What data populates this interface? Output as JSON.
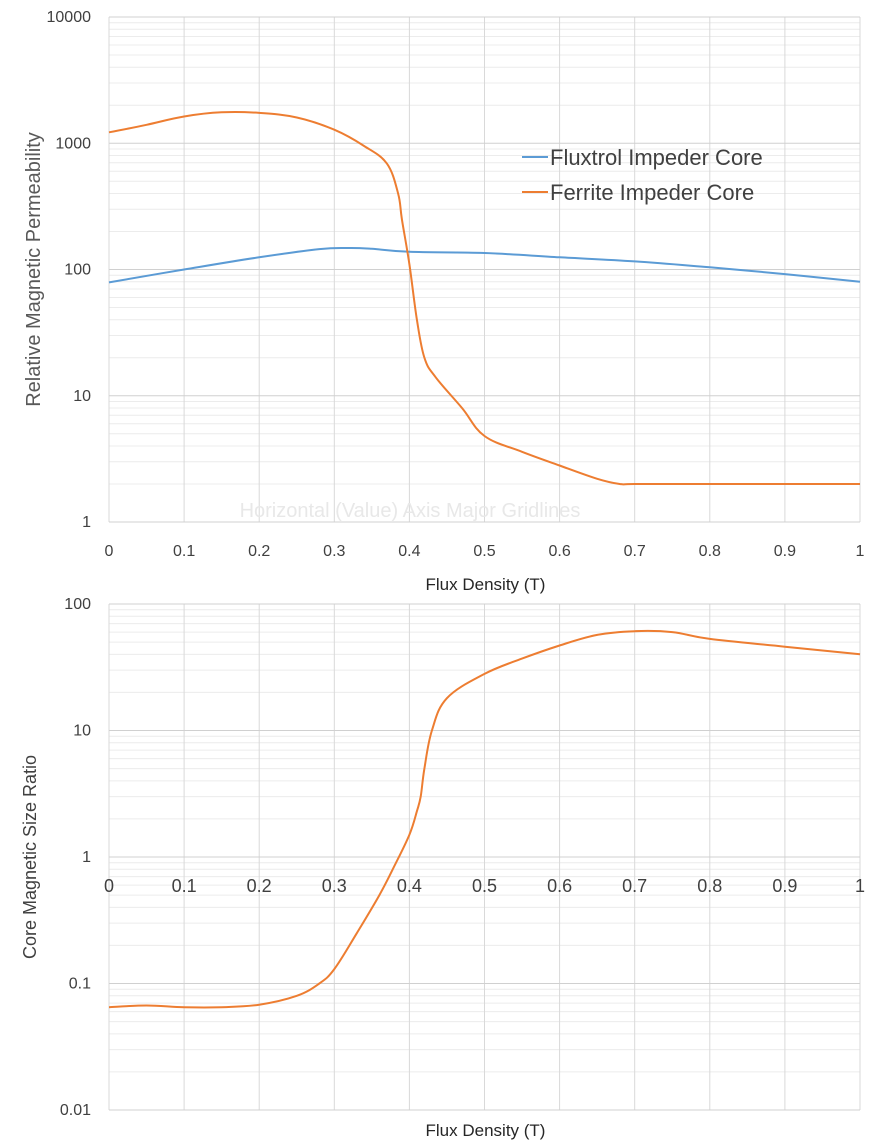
{
  "chart_data": [
    {
      "type": "line",
      "y_scale": "log",
      "xlabel": "Flux Density (T)",
      "ylabel": "Relative Magnetic Permeability",
      "xlim": [
        0,
        1
      ],
      "ylim": [
        1,
        10000
      ],
      "x_ticks": [
        "0",
        "0.1",
        "0.2",
        "0.3",
        "0.4",
        "0.5",
        "0.6",
        "0.7",
        "0.8",
        "0.9",
        "1"
      ],
      "y_ticks": [
        "1",
        "10",
        "100",
        "1000",
        "10000"
      ],
      "grid": true,
      "legend_position": "right",
      "ghost_label": "Horizontal (Value) Axis Major Gridlines",
      "series": [
        {
          "name": "Fluxtrol Impeder Core",
          "color": "#5b9bd5",
          "x": [
            0,
            0.1,
            0.2,
            0.28,
            0.32,
            0.35,
            0.4,
            0.5,
            0.6,
            0.7,
            0.8,
            0.9,
            1.0
          ],
          "y": [
            79,
            100,
            125,
            145,
            148,
            146,
            138,
            135,
            125,
            116,
            104,
            92,
            80
          ]
        },
        {
          "name": "Ferrite Impeder Core",
          "color": "#ed7d31",
          "x": [
            0,
            0.05,
            0.1,
            0.15,
            0.2,
            0.25,
            0.3,
            0.34,
            0.37,
            0.385,
            0.39,
            0.4,
            0.41,
            0.42,
            0.435,
            0.47,
            0.5,
            0.55,
            0.6,
            0.65,
            0.68,
            0.7,
            0.8,
            0.9,
            1.0
          ],
          "y": [
            1220,
            1400,
            1630,
            1760,
            1740,
            1600,
            1280,
            950,
            690,
            400,
            250,
            110,
            40,
            20,
            14,
            8,
            4.8,
            3.6,
            2.8,
            2.2,
            2.0,
            2.0,
            2.0,
            2.0,
            2.0
          ]
        }
      ]
    },
    {
      "type": "line",
      "y_scale": "log",
      "xlabel": "Flux Density (T)",
      "ylabel": "Core Magnetic Size Ratio",
      "xlim": [
        0,
        1
      ],
      "ylim": [
        0.01,
        100
      ],
      "x_ticks": [
        "0",
        "0.1",
        "0.2",
        "0.3",
        "0.4",
        "0.5",
        "0.6",
        "0.7",
        "0.8",
        "0.9",
        "1"
      ],
      "y_ticks": [
        "0.01",
        "0.1",
        "1",
        "10",
        "100"
      ],
      "grid": true,
      "series": [
        {
          "color": "#ed7d31",
          "x": [
            0,
            0.05,
            0.1,
            0.15,
            0.2,
            0.25,
            0.28,
            0.3,
            0.33,
            0.36,
            0.38,
            0.4,
            0.41,
            0.415,
            0.42,
            0.43,
            0.45,
            0.5,
            0.55,
            0.6,
            0.65,
            0.7,
            0.75,
            0.8,
            0.9,
            1.0
          ],
          "y": [
            0.065,
            0.067,
            0.065,
            0.065,
            0.068,
            0.08,
            0.1,
            0.13,
            0.25,
            0.5,
            0.85,
            1.5,
            2.3,
            3.0,
            5.0,
            10,
            18,
            28,
            37,
            47,
            57,
            61,
            60,
            53,
            46,
            40
          ]
        }
      ]
    }
  ]
}
